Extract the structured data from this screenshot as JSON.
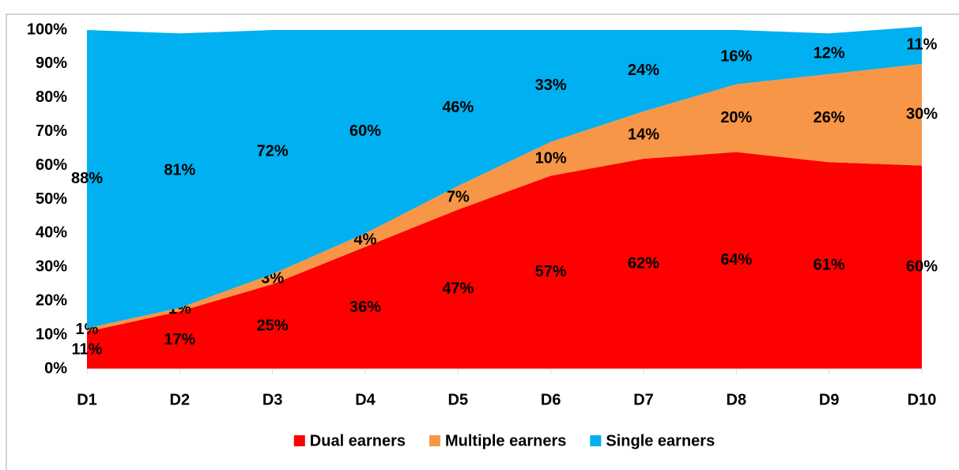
{
  "chart_data": {
    "type": "stacked_area",
    "categories": [
      "D1",
      "D2",
      "D3",
      "D4",
      "D5",
      "D6",
      "D7",
      "D8",
      "D9",
      "D10"
    ],
    "series": [
      {
        "name": "Dual earners",
        "color": "#ff0000",
        "values": [
          11,
          17,
          25,
          36,
          47,
          57,
          62,
          64,
          61,
          60
        ],
        "value_labels": [
          "11%",
          "17%",
          "25%",
          "36%",
          "47%",
          "57%",
          "62%",
          "64%",
          "61%",
          "60%"
        ]
      },
      {
        "name": "Multiple earners",
        "color": "#f79646",
        "values": [
          1,
          1,
          3,
          4,
          7,
          10,
          14,
          20,
          26,
          30
        ],
        "value_labels": [
          "1%",
          "1%",
          "3%",
          "4%",
          "7%",
          "10%",
          "14%",
          "20%",
          "26%",
          "30%"
        ]
      },
      {
        "name": "Single earners",
        "color": "#00b0f0",
        "values": [
          88,
          81,
          72,
          60,
          46,
          33,
          24,
          16,
          12,
          11
        ],
        "value_labels": [
          "88%",
          "81%",
          "72%",
          "60%",
          "46%",
          "33%",
          "24%",
          "16%",
          "12%",
          "11%"
        ]
      }
    ],
    "ylim": [
      0,
      100
    ],
    "yticks": [
      {
        "value": 0,
        "label": "0%"
      },
      {
        "value": 10,
        "label": "10%"
      },
      {
        "value": 20,
        "label": "20%"
      },
      {
        "value": 30,
        "label": "30%"
      },
      {
        "value": 40,
        "label": "40%"
      },
      {
        "value": 50,
        "label": "50%"
      },
      {
        "value": 60,
        "label": "60%"
      },
      {
        "value": 70,
        "label": "70%"
      },
      {
        "value": 80,
        "label": "80%"
      },
      {
        "value": 90,
        "label": "90%"
      },
      {
        "value": 100,
        "label": "100%"
      }
    ],
    "legend": "bottom"
  }
}
